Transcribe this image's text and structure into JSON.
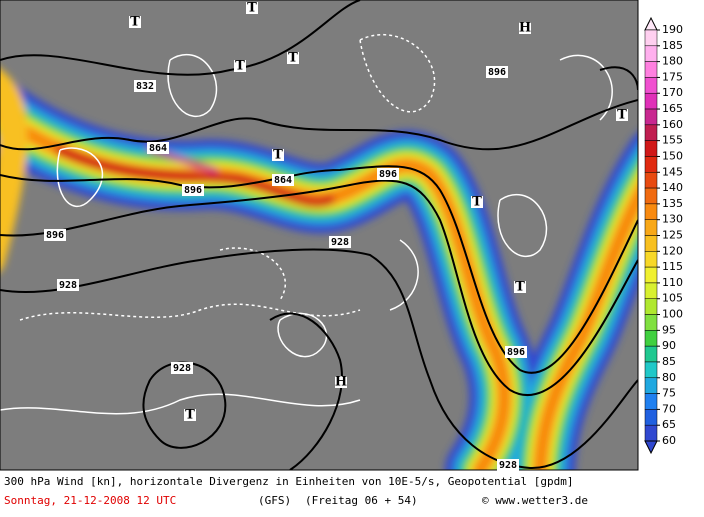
{
  "map": {
    "labels": [
      "832",
      "864",
      "864",
      "896",
      "896",
      "896",
      "896",
      "896",
      "928",
      "928",
      "928",
      "928",
      "H",
      "H",
      "T",
      "T",
      "T",
      "T",
      "T",
      "T",
      "T",
      "T",
      "T"
    ]
  },
  "colorbar": {
    "ticks": [
      190,
      185,
      180,
      175,
      170,
      165,
      160,
      155,
      150,
      145,
      140,
      135,
      130,
      125,
      120,
      115,
      110,
      105,
      100,
      95,
      90,
      85,
      80,
      75,
      70,
      65,
      60
    ],
    "colors": [
      "#ffd0f0",
      "#ffb0ee",
      "#ff80e0",
      "#f050d0",
      "#e030b8",
      "#c82890",
      "#c01e50",
      "#d01818",
      "#e02a10",
      "#e84a10",
      "#f06a10",
      "#f88a10",
      "#f8a818",
      "#f8c020",
      "#f8d828",
      "#f0f030",
      "#d8f030",
      "#b0e830",
      "#80e040",
      "#40d040",
      "#20c890",
      "#20c8c8",
      "#20a8e0",
      "#2080f0",
      "#2060e0",
      "#3048d0"
    ]
  },
  "footer": {
    "line1": "300 hPa Wind [kn], horizontale Divergenz in Einheiten von 10E-5/s, Geopotential [gpdm]",
    "date": "Sonntag, 21-12-2008  12 UTC",
    "model": "(GFS)",
    "run": "(Freitag 06 + 54)",
    "credit": "© www.wetter3.de"
  }
}
